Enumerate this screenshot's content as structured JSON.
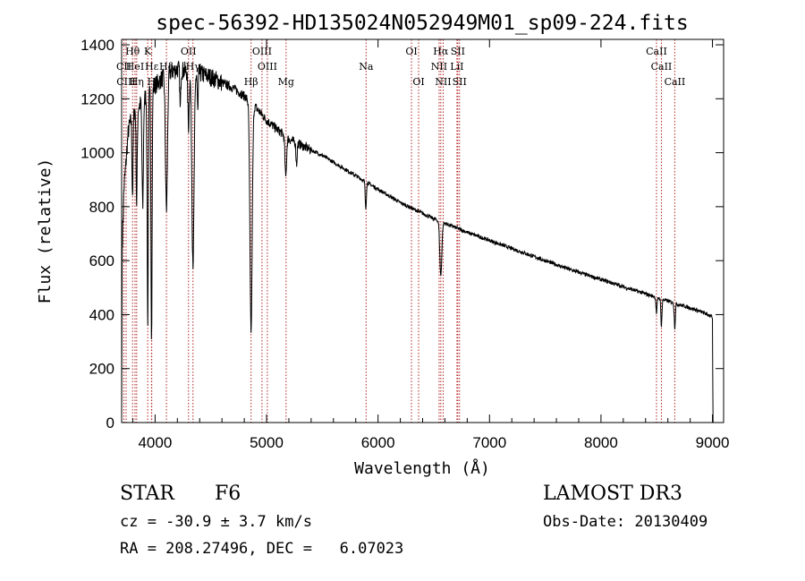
{
  "chart_data": {
    "type": "line",
    "title": "spec-56392-HD135024N052949M01_sp09-224.fits",
    "xlabel": "Wavelength (Å)",
    "ylabel": "Flux (relative)",
    "xlim": [
      3700,
      9100
    ],
    "ylim": [
      0,
      1420
    ],
    "xticks": [
      4000,
      5000,
      6000,
      7000,
      8000,
      9000
    ],
    "yticks": [
      0,
      200,
      400,
      600,
      800,
      1000,
      1200,
      1400
    ],
    "grid": false,
    "series": [
      {
        "name": "flux",
        "continuum": [
          [
            3700,
            0
          ],
          [
            3705,
            650
          ],
          [
            3720,
            860
          ],
          [
            3760,
            1080
          ],
          [
            3800,
            1150
          ],
          [
            3850,
            1170
          ],
          [
            3900,
            1200
          ],
          [
            4000,
            1250
          ],
          [
            4100,
            1290
          ],
          [
            4200,
            1310
          ],
          [
            4300,
            1300
          ],
          [
            4400,
            1295
          ],
          [
            4500,
            1280
          ],
          [
            4600,
            1260
          ],
          [
            4700,
            1240
          ],
          [
            4800,
            1210
          ],
          [
            4900,
            1170
          ],
          [
            5000,
            1120
          ],
          [
            5100,
            1085
          ],
          [
            5200,
            1050
          ],
          [
            5300,
            1030
          ],
          [
            5400,
            1010
          ],
          [
            5500,
            990
          ],
          [
            5600,
            965
          ],
          [
            5700,
            940
          ],
          [
            5800,
            915
          ],
          [
            5900,
            890
          ],
          [
            6000,
            865
          ],
          [
            6100,
            840
          ],
          [
            6200,
            815
          ],
          [
            6300,
            795
          ],
          [
            6400,
            775
          ],
          [
            6500,
            755
          ],
          [
            6600,
            738
          ],
          [
            6700,
            722
          ],
          [
            6800,
            705
          ],
          [
            6900,
            690
          ],
          [
            7000,
            675
          ],
          [
            7100,
            660
          ],
          [
            7200,
            645
          ],
          [
            7300,
            630
          ],
          [
            7400,
            615
          ],
          [
            7500,
            600
          ],
          [
            7600,
            585
          ],
          [
            7700,
            570
          ],
          [
            7800,
            557
          ],
          [
            7900,
            543
          ],
          [
            8000,
            530
          ],
          [
            8100,
            517
          ],
          [
            8200,
            503
          ],
          [
            8300,
            490
          ],
          [
            8400,
            477
          ],
          [
            8500,
            464
          ],
          [
            8600,
            450
          ],
          [
            8700,
            437
          ],
          [
            8800,
            425
          ],
          [
            8900,
            410
          ],
          [
            8990,
            395
          ],
          [
            9000,
            385
          ],
          [
            9005,
            0
          ]
        ],
        "absorption_lines": [
          [
            3798,
            300,
            5
          ],
          [
            3835,
            350,
            5
          ],
          [
            3889,
            400,
            6
          ],
          [
            3934,
            850,
            5
          ],
          [
            3968,
            900,
            5
          ],
          [
            4102,
            500,
            9
          ],
          [
            4226,
            150,
            4
          ],
          [
            4300,
            200,
            6
          ],
          [
            4340,
            700,
            10
          ],
          [
            4383,
            150,
            4
          ],
          [
            4861,
            850,
            10
          ],
          [
            5172,
            150,
            7
          ],
          [
            5269,
            80,
            5
          ],
          [
            5890,
            100,
            5
          ],
          [
            6563,
            200,
            9
          ],
          [
            8498,
            60,
            5
          ],
          [
            8542,
            100,
            5
          ],
          [
            8662,
            90,
            5
          ]
        ]
      }
    ],
    "line_markers": [
      {
        "label": "Hθ",
        "wavelength": 3798,
        "row": 1
      },
      {
        "label": "CII",
        "wavelength": 3720,
        "row": 2
      },
      {
        "label": "HeI",
        "wavelength": 3820,
        "row": 2
      },
      {
        "label": "CIII",
        "wavelength": 3740,
        "row": 3
      },
      {
        "label": "Hη",
        "wavelength": 3835,
        "row": 3
      },
      {
        "label": "K",
        "wavelength": 3934,
        "row": 1
      },
      {
        "label": "H",
        "wavelength": 3968,
        "row": 3
      },
      {
        "label": "Hε",
        "wavelength": 3970,
        "row": 2
      },
      {
        "label": "Hδ",
        "wavelength": 4102,
        "row": 2
      },
      {
        "label": "OII",
        "wavelength": 4300,
        "row": 1
      },
      {
        "label": "Hγ",
        "wavelength": 4340,
        "row": 2
      },
      {
        "label": "Hβ",
        "wavelength": 4861,
        "row": 3
      },
      {
        "label": "OIII",
        "wavelength": 4959,
        "row": 1
      },
      {
        "label": "OIII",
        "wavelength": 5007,
        "row": 2
      },
      {
        "label": "Mg",
        "wavelength": 5175,
        "row": 3
      },
      {
        "label": "Na",
        "wavelength": 5893,
        "row": 2
      },
      {
        "label": "OI",
        "wavelength": 6300,
        "row": 1
      },
      {
        "label": "OI",
        "wavelength": 6364,
        "row": 3
      },
      {
        "label": "NII",
        "wavelength": 6548,
        "row": 2
      },
      {
        "label": "Hα",
        "wavelength": 6563,
        "row": 1
      },
      {
        "label": "NII",
        "wavelength": 6584,
        "row": 3
      },
      {
        "label": "LiI",
        "wavelength": 6708,
        "row": 2
      },
      {
        "label": "SII",
        "wavelength": 6716,
        "row": 1
      },
      {
        "label": "SII",
        "wavelength": 6731,
        "row": 3
      },
      {
        "label": "CaII",
        "wavelength": 8498,
        "row": 1
      },
      {
        "label": "CaII",
        "wavelength": 8542,
        "row": 2
      },
      {
        "label": "CaII",
        "wavelength": 8662,
        "row": 3
      }
    ],
    "colors": {
      "spectrum": "#000000",
      "marker_line": "#b22222",
      "axis": "#000000"
    }
  },
  "info": {
    "object_class": "STAR",
    "subclass": "F6",
    "survey": "LAMOST DR3",
    "redshift": "cz = -30.9 ± 3.7 km/s",
    "obs_date": "Obs-Date: 20130409",
    "coords": "RA = 208.27496, DEC =   6.07023"
  }
}
